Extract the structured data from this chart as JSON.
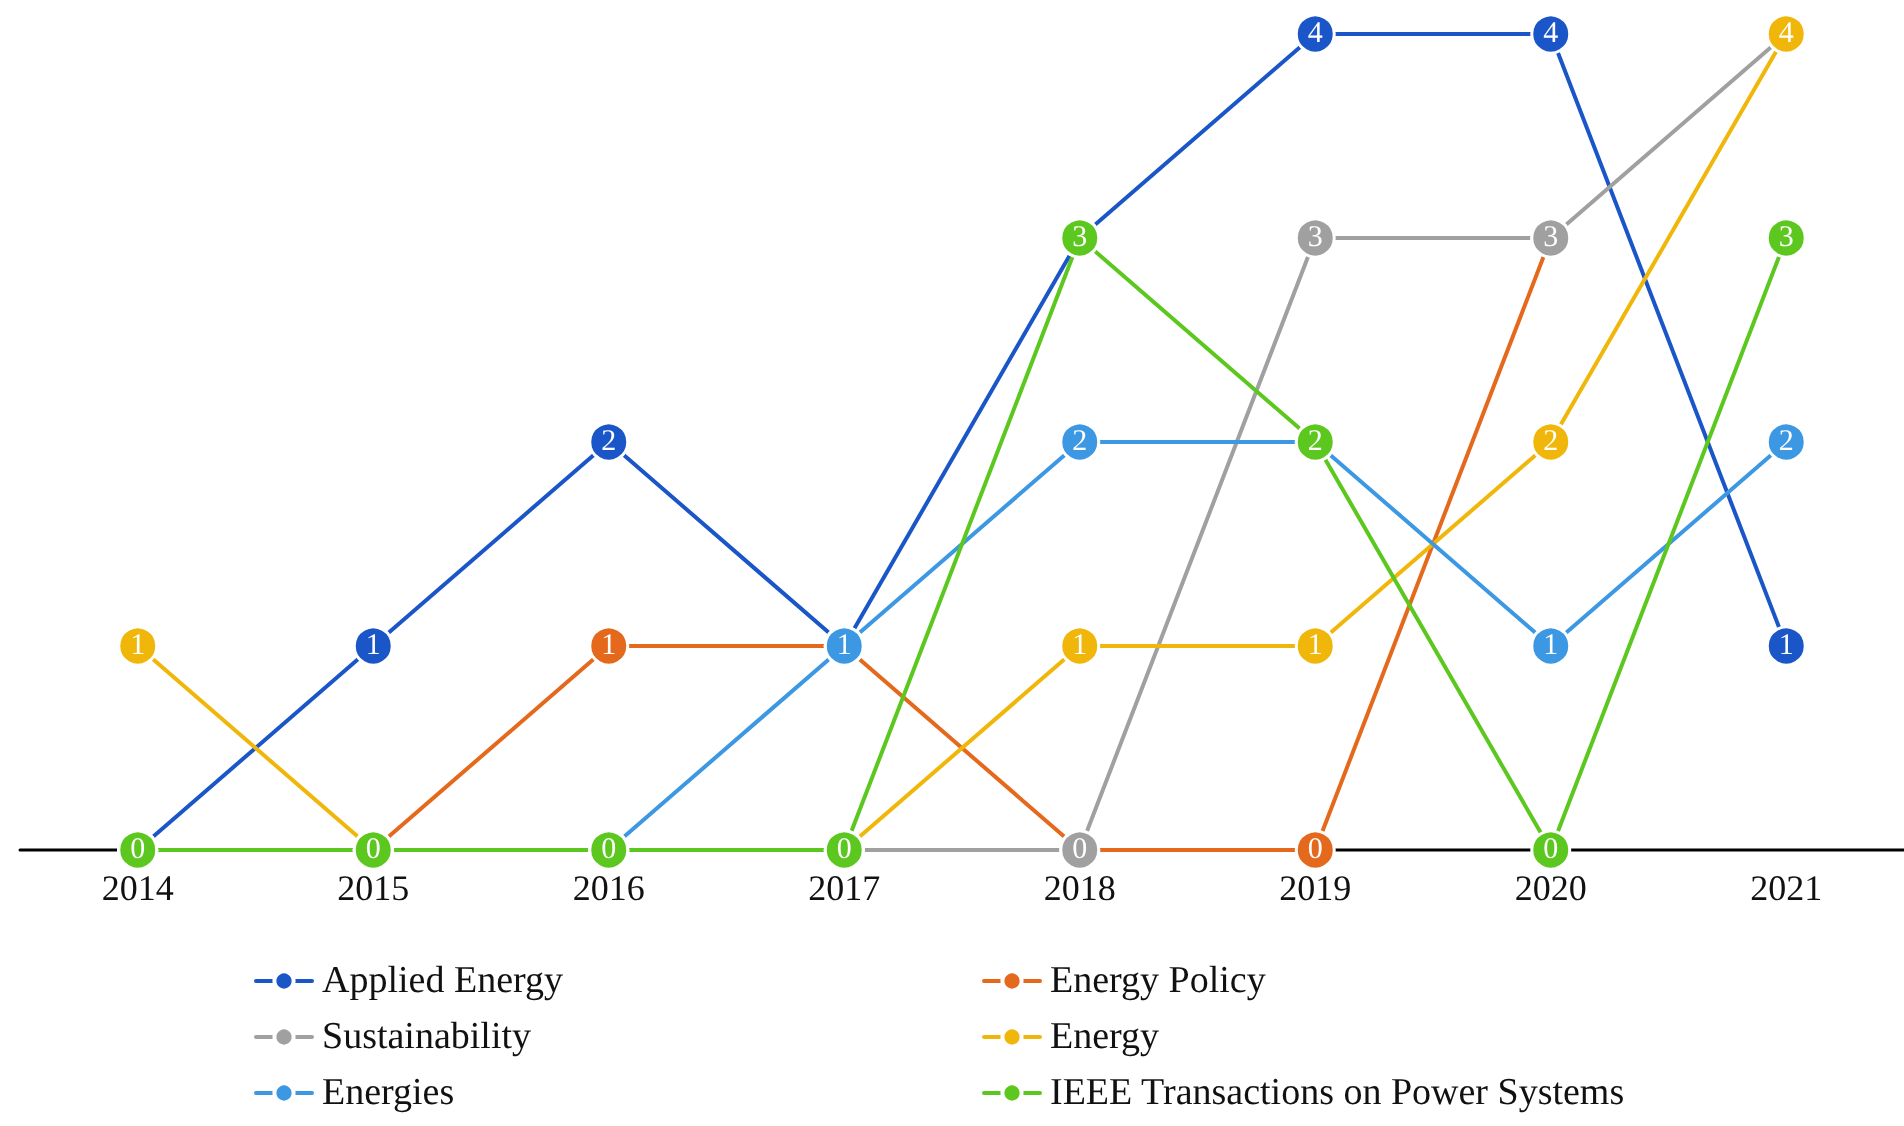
{
  "chart_data": {
    "type": "line",
    "categories": [
      "2014",
      "2015",
      "2016",
      "2017",
      "2018",
      "2019",
      "2020",
      "2021"
    ],
    "series": [
      {
        "name": "Applied Energy",
        "color": "#1a56c8",
        "values": [
          0,
          1,
          2,
          1,
          3,
          4,
          4,
          1
        ],
        "value_labels": [
          null,
          "1",
          "2",
          null,
          null,
          "4",
          "4",
          "1"
        ]
      },
      {
        "name": "Energy Policy",
        "color": "#e5691c",
        "values": [
          0,
          0,
          1,
          1,
          0,
          0,
          3,
          null
        ],
        "value_labels": [
          null,
          null,
          "1",
          null,
          null,
          "0",
          null,
          null
        ]
      },
      {
        "name": "Sustainability",
        "color": "#a0a0a0",
        "values": [
          null,
          null,
          0,
          0,
          0,
          3,
          3,
          4
        ],
        "value_labels": [
          null,
          null,
          null,
          null,
          "0",
          "3",
          "3",
          null
        ]
      },
      {
        "name": "Energy",
        "color": "#f0b70a",
        "values": [
          1,
          0,
          0,
          0,
          1,
          1,
          2,
          4
        ],
        "value_labels": [
          "1",
          null,
          null,
          null,
          "1",
          "1",
          "2",
          "4"
        ]
      },
      {
        "name": "Energies",
        "color": "#3d98e3",
        "values": [
          0,
          0,
          0,
          1,
          2,
          2,
          1,
          2
        ],
        "value_labels": [
          null,
          null,
          null,
          "1",
          "2",
          null,
          "1",
          "2"
        ]
      },
      {
        "name": "IEEE Transactions on Power Systems",
        "color": "#5cc81f",
        "values": [
          0,
          0,
          0,
          0,
          3,
          2,
          0,
          3
        ],
        "value_labels": [
          "0",
          "0",
          "0",
          "0",
          "3",
          "2",
          "0",
          "3"
        ]
      }
    ],
    "tick_labels": "x",
    "marker": "circle",
    "line_style": "solid",
    "legend": "bottom"
  }
}
